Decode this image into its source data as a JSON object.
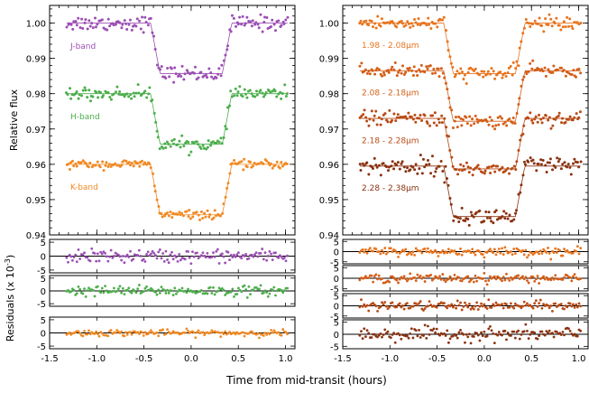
{
  "figure": {
    "xlabel": "Time from mid-transit (hours)",
    "ylabel_top": "Relative flux",
    "ylabel_bottom": "Residuals (x 10",
    "ylabel_bottom_exp": "-3",
    "ylabel_bottom_close": ")"
  },
  "colors": {
    "J": "#9b4fb3",
    "H": "#4cae4c",
    "K": "#f08a24",
    "c1": "#e8741e",
    "c2": "#d45e18",
    "c3": "#b84a14",
    "c4": "#8a3210",
    "axis": "#000000"
  },
  "chart_data": [
    {
      "type": "scatter",
      "panel": "left-flux",
      "xlim": [
        -1.5,
        1.1
      ],
      "ylim": [
        0.94,
        1.005
      ],
      "xticks": [
        -1.5,
        -1.0,
        -0.5,
        0.0,
        0.5,
        1.0
      ],
      "yticks": [
        0.94,
        0.95,
        0.96,
        0.97,
        0.98,
        0.99,
        1.0
      ],
      "ytick_labels": [
        "0.94",
        "0.95",
        "0.96",
        "0.97",
        "0.98",
        "0.99",
        "1.00"
      ],
      "x_range_data": [
        -1.32,
        1.02
      ],
      "transit": {
        "t1": -0.43,
        "t2": -0.33,
        "t3": 0.33,
        "t4": 0.43
      },
      "series": [
        {
          "name": "J-band",
          "color_key": "J",
          "baseline": 1.0,
          "depth": 0.0143,
          "scatter": 0.0011
        },
        {
          "name": "H-band",
          "color_key": "H",
          "baseline": 0.98,
          "depth": 0.0143,
          "scatter": 0.0009
        },
        {
          "name": "K-band",
          "color_key": "K",
          "baseline": 0.96,
          "depth": 0.0143,
          "scatter": 0.0006
        }
      ]
    },
    {
      "type": "scatter",
      "panel": "right-flux",
      "xlim": [
        -1.5,
        1.1
      ],
      "ylim": [
        0.94,
        1.005
      ],
      "xticks": [
        -1.5,
        -1.0,
        -0.5,
        0.0,
        0.5,
        1.0
      ],
      "yticks": [
        0.94,
        0.95,
        0.96,
        0.97,
        0.98,
        0.99,
        1.0
      ],
      "ytick_labels": [
        "0.94",
        "0.95",
        "0.96",
        "0.97",
        "0.98",
        "0.99",
        "1.00"
      ],
      "x_range_data": [
        -1.32,
        1.02
      ],
      "transit": {
        "t1": -0.43,
        "t2": -0.33,
        "t3": 0.33,
        "t4": 0.43
      },
      "series": [
        {
          "name": "1.98 - 2.08",
          "unit": "μm",
          "color_key": "c1",
          "baseline": 1.0,
          "depth": 0.0143,
          "scatter": 0.001
        },
        {
          "name": "2.08 - 2.18",
          "unit": "μm",
          "color_key": "c2",
          "baseline": 0.9865,
          "depth": 0.0143,
          "scatter": 0.0009
        },
        {
          "name": "2.18 - 2.28",
          "unit": "μm",
          "color_key": "c3",
          "baseline": 0.973,
          "depth": 0.0143,
          "scatter": 0.001
        },
        {
          "name": "2.28 - 2.38",
          "unit": "μm",
          "color_key": "c4",
          "baseline": 0.9595,
          "depth": 0.0143,
          "scatter": 0.0013
        }
      ]
    },
    {
      "type": "scatter",
      "panel": "residuals",
      "xlim": [
        -1.5,
        1.1
      ],
      "ylim": [
        -6,
        6
      ],
      "yticks": [
        -5,
        0,
        5
      ],
      "ytick_labels": [
        "-5",
        "0",
        "5"
      ],
      "xtick_labels": [
        "-1.5",
        "-1.0",
        "-0.5",
        "0.0",
        "0.5",
        "1.0"
      ],
      "left_residuals": [
        {
          "band": "J-band",
          "color_key": "J",
          "scatter": 1.2
        },
        {
          "band": "H-band",
          "color_key": "H",
          "scatter": 1.0
        },
        {
          "band": "K-band",
          "color_key": "K",
          "scatter": 0.6
        }
      ],
      "right_residuals": [
        {
          "band": "1.98 - 2.08",
          "color_key": "c1",
          "scatter": 1.0
        },
        {
          "band": "2.08 - 2.18",
          "color_key": "c2",
          "scatter": 1.0
        },
        {
          "band": "2.18 - 2.28",
          "color_key": "c3",
          "scatter": 1.1
        },
        {
          "band": "2.28 - 2.38",
          "color_key": "c4",
          "scatter": 1.4
        }
      ]
    }
  ]
}
